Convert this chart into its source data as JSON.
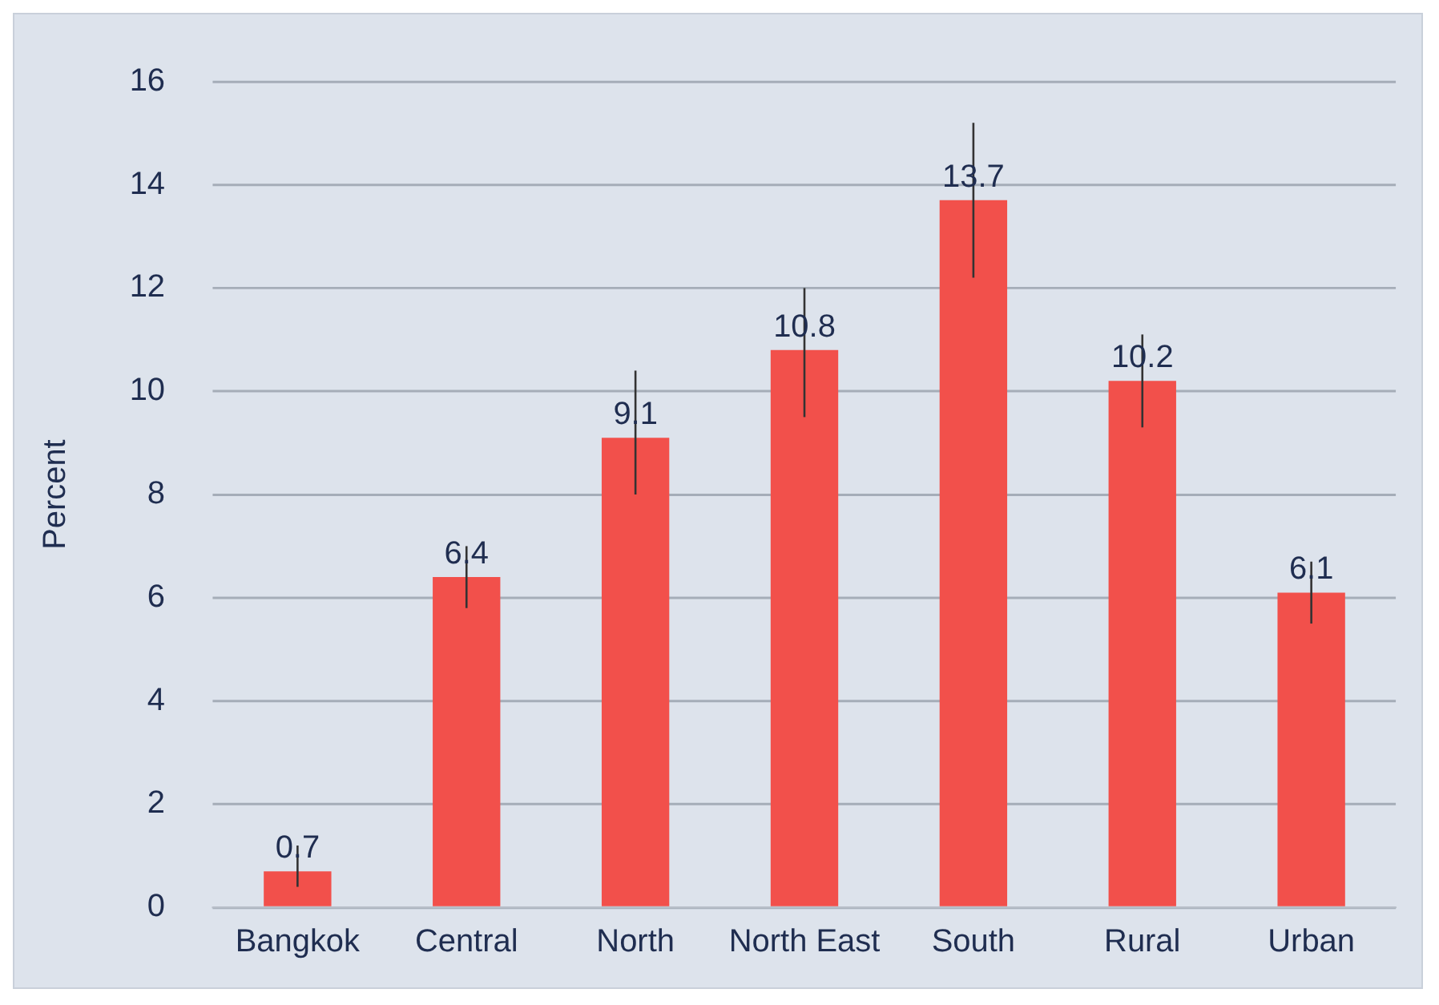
{
  "chart_data": {
    "type": "bar",
    "ylabel": "Percent",
    "categories": [
      "Bangkok",
      "Central",
      "North",
      "North East",
      "South",
      "Rural",
      "Urban"
    ],
    "values": [
      0.7,
      6.4,
      9.1,
      10.8,
      13.7,
      10.2,
      6.1
    ],
    "errors": [
      [
        0.4,
        1.2
      ],
      [
        5.8,
        7.0
      ],
      [
        8.0,
        10.4
      ],
      [
        9.5,
        12.0
      ],
      [
        12.2,
        15.2
      ],
      [
        9.3,
        11.1
      ],
      [
        5.5,
        6.7
      ]
    ],
    "color": "#f2504b",
    "ylim": [
      0,
      16
    ],
    "yticks": [
      0,
      2,
      4,
      6,
      8,
      10,
      12,
      14,
      16
    ],
    "grid": "y",
    "data_labels": true,
    "legend": false
  }
}
